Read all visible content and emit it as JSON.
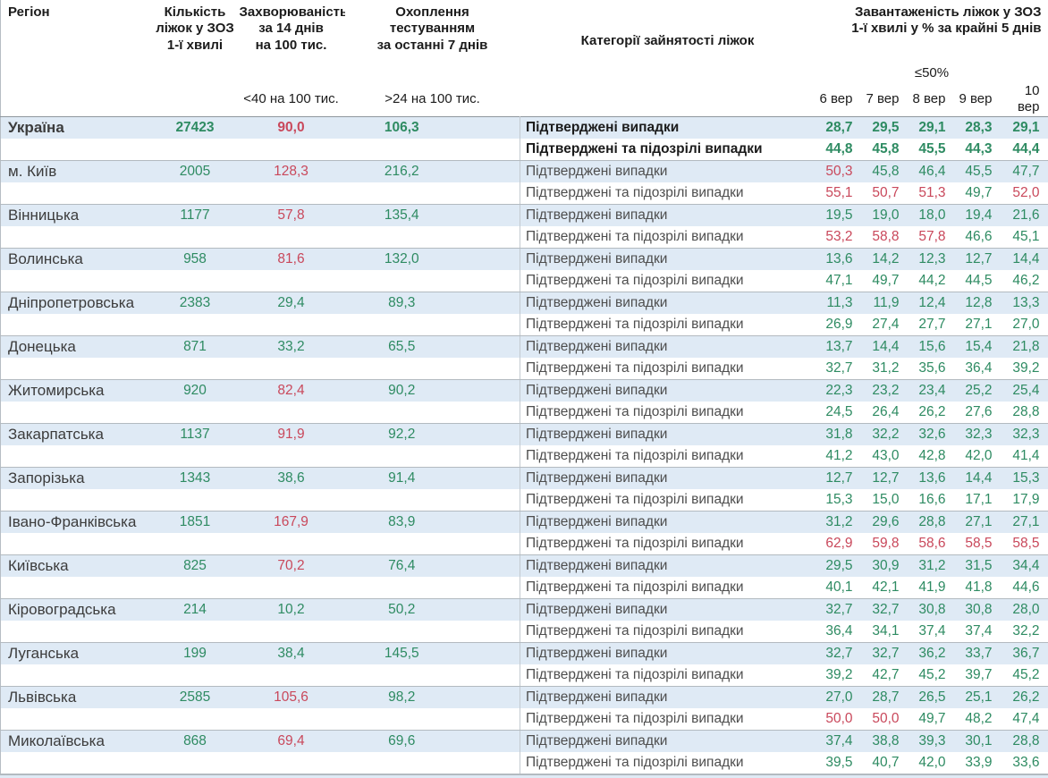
{
  "colors": {
    "green": "#2e8b62",
    "red": "#c9485b",
    "row_highlight": "#dfeaf5"
  },
  "chart_data": {
    "type": "table",
    "header": {
      "col_region": "Регіон",
      "col_beds": "Кількість\nліжок у ЗОЗ\n1-ї хвилі",
      "col_incidence": "Захворюваність\nза 14 днів\nна 100 тис.",
      "col_testing": "Охоплення\nтестуванням\nза останні 7 днів",
      "col_category": "Категорії зайнятості ліжок",
      "col_occupancy": "Завантаженість ліжок у ЗОЗ\n1-ї хвилі у % за крайні 5 днів",
      "sub_incidence": "<40 на 100 тис.",
      "sub_testing": ">24 на 100 тис.",
      "sub_threshold": "≤50%",
      "dates": [
        "6 вер",
        "7 вер",
        "8 вер",
        "9 вер",
        "10 вер"
      ]
    },
    "row_labels": {
      "confirmed": "Підтверджені випадки",
      "confirmed_suspected": "Підтверджені та підозрілі випадки"
    },
    "rows": [
      {
        "region": "Україна",
        "bold": true,
        "beds": [
          "27423",
          "g"
        ],
        "incidence": [
          "90,0",
          "r"
        ],
        "testing": [
          "106,3",
          "g"
        ],
        "confirmed": {
          "v": [
            "28,7",
            "29,5",
            "29,1",
            "28,3",
            "29,1"
          ],
          "c": [
            "g",
            "g",
            "g",
            "g",
            "g"
          ]
        },
        "suspected": {
          "v": [
            "44,8",
            "45,8",
            "45,5",
            "44,3",
            "44,4"
          ],
          "c": [
            "g",
            "g",
            "g",
            "g",
            "g"
          ]
        }
      },
      {
        "region": "м. Київ",
        "bold": false,
        "beds": [
          "2005",
          "g"
        ],
        "incidence": [
          "128,3",
          "r"
        ],
        "testing": [
          "216,2",
          "g"
        ],
        "confirmed": {
          "v": [
            "50,3",
            "45,8",
            "46,4",
            "45,5",
            "47,7"
          ],
          "c": [
            "r",
            "g",
            "g",
            "g",
            "g"
          ]
        },
        "suspected": {
          "v": [
            "55,1",
            "50,7",
            "51,3",
            "49,7",
            "52,0"
          ],
          "c": [
            "r",
            "r",
            "r",
            "g",
            "r"
          ]
        }
      },
      {
        "region": "Вінницька",
        "bold": false,
        "beds": [
          "1177",
          "g"
        ],
        "incidence": [
          "57,8",
          "r"
        ],
        "testing": [
          "135,4",
          "g"
        ],
        "confirmed": {
          "v": [
            "19,5",
            "19,0",
            "18,0",
            "19,4",
            "21,6"
          ],
          "c": [
            "g",
            "g",
            "g",
            "g",
            "g"
          ]
        },
        "suspected": {
          "v": [
            "53,2",
            "58,8",
            "57,8",
            "46,6",
            "45,1"
          ],
          "c": [
            "r",
            "r",
            "r",
            "g",
            "g"
          ]
        }
      },
      {
        "region": "Волинська",
        "bold": false,
        "beds": [
          "958",
          "g"
        ],
        "incidence": [
          "81,6",
          "r"
        ],
        "testing": [
          "132,0",
          "g"
        ],
        "confirmed": {
          "v": [
            "13,6",
            "14,2",
            "12,3",
            "12,7",
            "14,4"
          ],
          "c": [
            "g",
            "g",
            "g",
            "g",
            "g"
          ]
        },
        "suspected": {
          "v": [
            "47,1",
            "49,7",
            "44,2",
            "44,5",
            "46,2"
          ],
          "c": [
            "g",
            "g",
            "g",
            "g",
            "g"
          ]
        }
      },
      {
        "region": "Дніпропетровська",
        "bold": false,
        "beds": [
          "2383",
          "g"
        ],
        "incidence": [
          "29,4",
          "g"
        ],
        "testing": [
          "89,3",
          "g"
        ],
        "confirmed": {
          "v": [
            "11,3",
            "11,9",
            "12,4",
            "12,8",
            "13,3"
          ],
          "c": [
            "g",
            "g",
            "g",
            "g",
            "g"
          ]
        },
        "suspected": {
          "v": [
            "26,9",
            "27,4",
            "27,7",
            "27,1",
            "27,0"
          ],
          "c": [
            "g",
            "g",
            "g",
            "g",
            "g"
          ]
        }
      },
      {
        "region": "Донецька",
        "bold": false,
        "beds": [
          "871",
          "g"
        ],
        "incidence": [
          "33,2",
          "g"
        ],
        "testing": [
          "65,5",
          "g"
        ],
        "confirmed": {
          "v": [
            "13,7",
            "14,4",
            "15,6",
            "15,4",
            "21,8"
          ],
          "c": [
            "g",
            "g",
            "g",
            "g",
            "g"
          ]
        },
        "suspected": {
          "v": [
            "32,7",
            "31,2",
            "35,6",
            "36,4",
            "39,2"
          ],
          "c": [
            "g",
            "g",
            "g",
            "g",
            "g"
          ]
        }
      },
      {
        "region": "Житомирська",
        "bold": false,
        "beds": [
          "920",
          "g"
        ],
        "incidence": [
          "82,4",
          "r"
        ],
        "testing": [
          "90,2",
          "g"
        ],
        "confirmed": {
          "v": [
            "22,3",
            "23,2",
            "23,4",
            "25,2",
            "25,4"
          ],
          "c": [
            "g",
            "g",
            "g",
            "g",
            "g"
          ]
        },
        "suspected": {
          "v": [
            "24,5",
            "26,4",
            "26,2",
            "27,6",
            "28,8"
          ],
          "c": [
            "g",
            "g",
            "g",
            "g",
            "g"
          ]
        }
      },
      {
        "region": "Закарпатська",
        "bold": false,
        "beds": [
          "1137",
          "g"
        ],
        "incidence": [
          "91,9",
          "r"
        ],
        "testing": [
          "92,2",
          "g"
        ],
        "confirmed": {
          "v": [
            "31,8",
            "32,2",
            "32,6",
            "32,3",
            "32,3"
          ],
          "c": [
            "g",
            "g",
            "g",
            "g",
            "g"
          ]
        },
        "suspected": {
          "v": [
            "41,2",
            "43,0",
            "42,8",
            "42,0",
            "41,4"
          ],
          "c": [
            "g",
            "g",
            "g",
            "g",
            "g"
          ]
        }
      },
      {
        "region": "Запорізька",
        "bold": false,
        "beds": [
          "1343",
          "g"
        ],
        "incidence": [
          "38,6",
          "g"
        ],
        "testing": [
          "91,4",
          "g"
        ],
        "confirmed": {
          "v": [
            "12,7",
            "12,7",
            "13,6",
            "14,4",
            "15,3"
          ],
          "c": [
            "g",
            "g",
            "g",
            "g",
            "g"
          ]
        },
        "suspected": {
          "v": [
            "15,3",
            "15,0",
            "16,6",
            "17,1",
            "17,9"
          ],
          "c": [
            "g",
            "g",
            "g",
            "g",
            "g"
          ]
        }
      },
      {
        "region": "Івано-Франківська",
        "bold": false,
        "beds": [
          "1851",
          "g"
        ],
        "incidence": [
          "167,9",
          "r"
        ],
        "testing": [
          "83,9",
          "g"
        ],
        "confirmed": {
          "v": [
            "31,2",
            "29,6",
            "28,8",
            "27,1",
            "27,1"
          ],
          "c": [
            "g",
            "g",
            "g",
            "g",
            "g"
          ]
        },
        "suspected": {
          "v": [
            "62,9",
            "59,8",
            "58,6",
            "58,5",
            "58,5"
          ],
          "c": [
            "r",
            "r",
            "r",
            "r",
            "r"
          ]
        }
      },
      {
        "region": "Київська",
        "bold": false,
        "beds": [
          "825",
          "g"
        ],
        "incidence": [
          "70,2",
          "r"
        ],
        "testing": [
          "76,4",
          "g"
        ],
        "confirmed": {
          "v": [
            "29,5",
            "30,9",
            "31,2",
            "31,5",
            "34,4"
          ],
          "c": [
            "g",
            "g",
            "g",
            "g",
            "g"
          ]
        },
        "suspected": {
          "v": [
            "40,1",
            "42,1",
            "41,9",
            "41,8",
            "44,6"
          ],
          "c": [
            "g",
            "g",
            "g",
            "g",
            "g"
          ]
        }
      },
      {
        "region": "Кіровоградська",
        "bold": false,
        "beds": [
          "214",
          "g"
        ],
        "incidence": [
          "10,2",
          "g"
        ],
        "testing": [
          "50,2",
          "g"
        ],
        "confirmed": {
          "v": [
            "32,7",
            "32,7",
            "30,8",
            "30,8",
            "28,0"
          ],
          "c": [
            "g",
            "g",
            "g",
            "g",
            "g"
          ]
        },
        "suspected": {
          "v": [
            "36,4",
            "34,1",
            "37,4",
            "37,4",
            "32,2"
          ],
          "c": [
            "g",
            "g",
            "g",
            "g",
            "g"
          ]
        }
      },
      {
        "region": "Луганська",
        "bold": false,
        "beds": [
          "199",
          "g"
        ],
        "incidence": [
          "38,4",
          "g"
        ],
        "testing": [
          "145,5",
          "g"
        ],
        "confirmed": {
          "v": [
            "32,7",
            "32,7",
            "36,2",
            "33,7",
            "36,7"
          ],
          "c": [
            "g",
            "g",
            "g",
            "g",
            "g"
          ]
        },
        "suspected": {
          "v": [
            "39,2",
            "42,7",
            "45,2",
            "39,7",
            "45,2"
          ],
          "c": [
            "g",
            "g",
            "g",
            "g",
            "g"
          ]
        }
      },
      {
        "region": "Львівська",
        "bold": false,
        "beds": [
          "2585",
          "g"
        ],
        "incidence": [
          "105,6",
          "r"
        ],
        "testing": [
          "98,2",
          "g"
        ],
        "confirmed": {
          "v": [
            "27,0",
            "28,7",
            "26,5",
            "25,1",
            "26,2"
          ],
          "c": [
            "g",
            "g",
            "g",
            "g",
            "g"
          ]
        },
        "suspected": {
          "v": [
            "50,0",
            "50,0",
            "49,7",
            "48,2",
            "47,4"
          ],
          "c": [
            "r",
            "r",
            "g",
            "g",
            "g"
          ]
        }
      },
      {
        "region": "Миколаївська",
        "bold": false,
        "beds": [
          "868",
          "g"
        ],
        "incidence": [
          "69,4",
          "r"
        ],
        "testing": [
          "69,6",
          "g"
        ],
        "confirmed": {
          "v": [
            "37,4",
            "38,8",
            "39,3",
            "30,1",
            "28,8"
          ],
          "c": [
            "g",
            "g",
            "g",
            "g",
            "g"
          ]
        },
        "suspected": {
          "v": [
            "39,5",
            "40,7",
            "42,0",
            "33,9",
            "33,6"
          ],
          "c": [
            "g",
            "g",
            "g",
            "g",
            "g"
          ]
        }
      }
    ]
  }
}
